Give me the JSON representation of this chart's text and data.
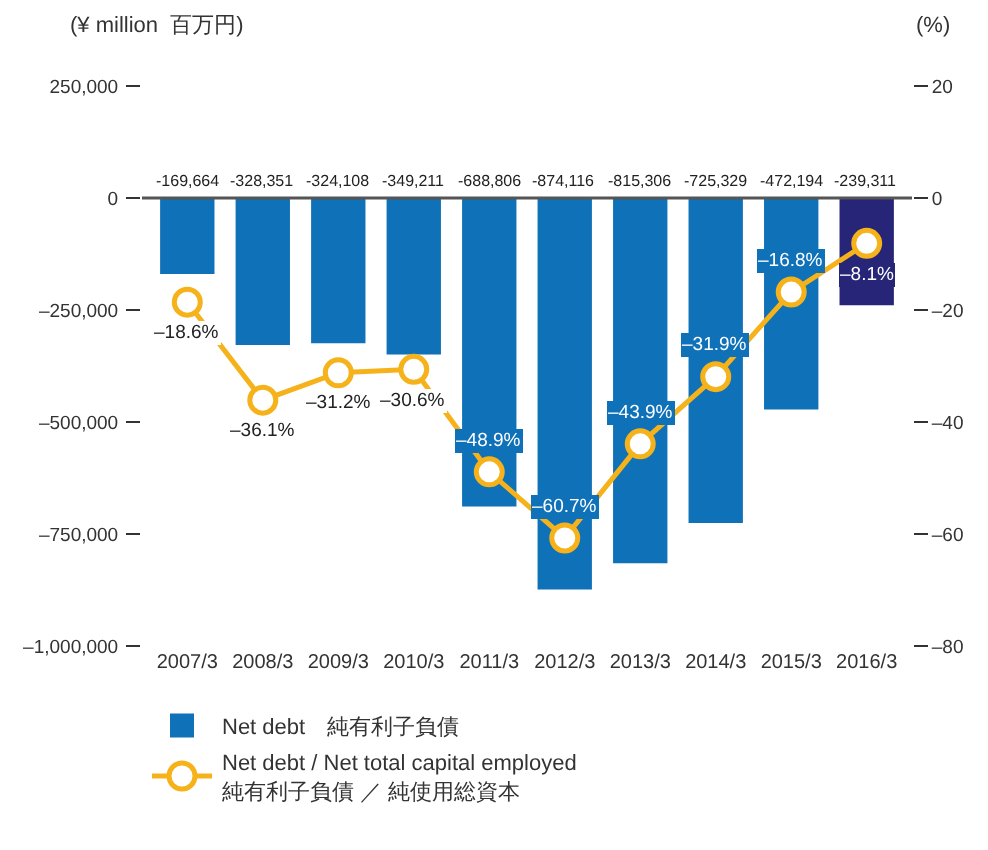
{
  "chart_data": {
    "type": "bar",
    "ylabel": "(¥ million  百万円)",
    "y2label": "(%)",
    "categories": [
      "2007/3",
      "2008/3",
      "2009/3",
      "2010/3",
      "2011/3",
      "2012/3",
      "2013/3",
      "2014/3",
      "2015/3",
      "2016/3"
    ],
    "series": [
      {
        "name": "Net debt　純有利子負債",
        "colors": [
          "#0f71b8",
          "#0f71b8",
          "#0f71b8",
          "#0f71b8",
          "#0f71b8",
          "#0f71b8",
          "#0f71b8",
          "#0f71b8",
          "#0f71b8",
          "#262577"
        ],
        "values": [
          -169664,
          -328351,
          -324108,
          -349211,
          -688806,
          -874116,
          -815306,
          -725329,
          -472194,
          -239311
        ],
        "value_labels": [
          "-169,664",
          "-328,351",
          "-324,108",
          "-349,211",
          "-688,806",
          "-874,116",
          "-815,306",
          "-725,329",
          "-472,194",
          "-239,311"
        ]
      },
      {
        "name": "Net debt / Net total capital employed\n純有利子負債 ／ 純使用総資本",
        "type": "line",
        "axis": "y2",
        "color": "#f5b21a",
        "marker": "circle",
        "values": [
          -18.6,
          -36.1,
          -31.2,
          -30.6,
          -48.9,
          -60.7,
          -43.9,
          -31.9,
          -16.8,
          -8.1
        ],
        "value_labels": [
          "–18.6%",
          "–36.1%",
          "–31.2%",
          "–30.6%",
          "–48.9%",
          "–60.7%",
          "–43.9%",
          "–31.9%",
          "–16.8%",
          "–8.1%"
        ]
      }
    ],
    "ylim": [
      -1000000,
      250000
    ],
    "yticks": [
      {
        "value": 250000,
        "label": "250,000"
      },
      {
        "value": 0,
        "label": "0"
      },
      {
        "value": -250000,
        "label": "–250,000"
      },
      {
        "value": -500000,
        "label": "–500,000"
      },
      {
        "value": -750000,
        "label": "–750,000"
      },
      {
        "value": -1000000,
        "label": "–1,000,000"
      }
    ],
    "y2lim": [
      -80,
      20
    ],
    "y2ticks": [
      {
        "value": 20,
        "label": "20"
      },
      {
        "value": 0,
        "label": "0"
      },
      {
        "value": -20,
        "label": "–20"
      },
      {
        "value": -40,
        "label": "–40"
      },
      {
        "value": -60,
        "label": "–60"
      },
      {
        "value": -80,
        "label": "–80"
      }
    ],
    "ref_lines": [
      {
        "axis": "y",
        "value": 0,
        "color": "#555555"
      }
    ],
    "legend": "bottom"
  }
}
